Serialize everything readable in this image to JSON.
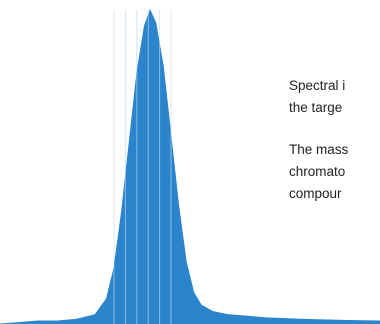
{
  "chart_data": {
    "type": "area",
    "title": "",
    "xlabel": "",
    "ylabel": "",
    "grid": false,
    "legend": "none",
    "series": [
      {
        "values": [
          [
            0.0,
            0.0
          ],
          [
            1.0,
            0.01
          ],
          [
            1.5,
            0.01
          ],
          [
            2.0,
            0.015
          ],
          [
            2.5,
            0.03
          ],
          [
            2.8,
            0.08
          ],
          [
            3.0,
            0.18
          ],
          [
            3.2,
            0.36
          ],
          [
            3.4,
            0.58
          ],
          [
            3.6,
            0.8
          ],
          [
            3.8,
            0.95
          ],
          [
            3.95,
            1.0
          ],
          [
            4.1,
            0.96
          ],
          [
            4.3,
            0.82
          ],
          [
            4.5,
            0.6
          ],
          [
            4.7,
            0.38
          ],
          [
            4.9,
            0.2
          ],
          [
            5.1,
            0.1
          ],
          [
            5.3,
            0.06
          ],
          [
            5.6,
            0.04
          ],
          [
            6.0,
            0.03
          ],
          [
            7.0,
            0.02
          ],
          [
            8.0,
            0.015
          ],
          [
            9.0,
            0.012
          ],
          [
            10.0,
            0.01
          ]
        ]
      }
    ],
    "scan_markers": [
      3.0,
      3.3,
      3.6,
      3.9,
      4.2,
      4.5
    ],
    "colors": {
      "fill": "#2b84cc",
      "marker": "#bcd6ec"
    }
  },
  "text": {
    "para1_line1": "Spectral i",
    "para1_line2": "the targe",
    "para2_line1": "The mass",
    "para2_line2": "chromato",
    "para2_line3": "compour"
  }
}
